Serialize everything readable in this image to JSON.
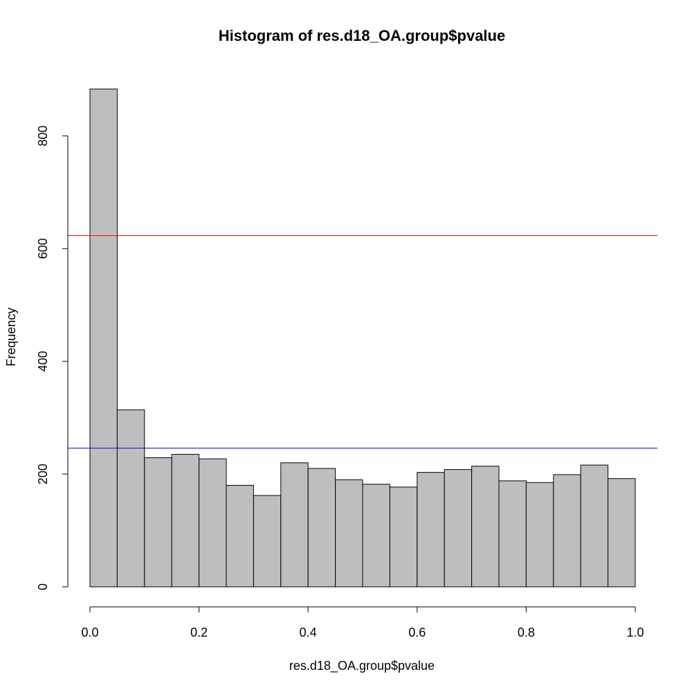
{
  "chart_data": {
    "type": "bar",
    "title": "Histogram of res.d18_OA.group$pvalue",
    "xlabel": "res.d18_OA.group$pvalue",
    "ylabel": "Frequency",
    "bin_edges": [
      0.0,
      0.05,
      0.1,
      0.15,
      0.2,
      0.25,
      0.3,
      0.35,
      0.4,
      0.45,
      0.5,
      0.55,
      0.6,
      0.65,
      0.7,
      0.75,
      0.8,
      0.85,
      0.9,
      0.95,
      1.0
    ],
    "values": [
      883,
      314,
      229,
      235,
      227,
      180,
      162,
      220,
      210,
      190,
      182,
      177,
      203,
      208,
      214,
      188,
      185,
      199,
      216,
      192
    ],
    "xlim": [
      0,
      1
    ],
    "ylim": [
      0,
      900
    ],
    "x_ticks": [
      0.0,
      0.2,
      0.4,
      0.6,
      0.8,
      1.0
    ],
    "x_tick_labels": [
      "0.0",
      "0.2",
      "0.4",
      "0.6",
      "0.8",
      "1.0"
    ],
    "y_ticks": [
      0,
      200,
      400,
      600,
      800
    ],
    "y_tick_labels": [
      "0",
      "200",
      "400",
      "600",
      "800"
    ],
    "hlines": [
      {
        "value": 623,
        "color": "#ff0000"
      },
      {
        "value": 246,
        "color": "#0000ff"
      }
    ],
    "bar_fill": "#bebebe",
    "bar_stroke": "#000000",
    "grid": false,
    "legend": "none"
  }
}
